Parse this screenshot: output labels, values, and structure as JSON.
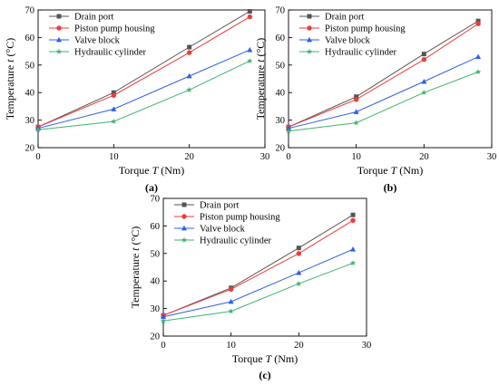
{
  "colors": {
    "Drain port": "#555555",
    "Piston pump housing": "#ee3b3b",
    "Valve block": "#2f5fe6",
    "Hydraulic cylinder": "#3cb371"
  },
  "chart_data": [
    {
      "type": "line",
      "panel_label": "(a)",
      "x": [
        0,
        10,
        20,
        28
      ],
      "xlim": [
        0,
        30
      ],
      "ylim": [
        20,
        70
      ],
      "xticks": [
        0,
        10,
        20,
        30
      ],
      "yticks": [
        20,
        30,
        40,
        50,
        60,
        70
      ],
      "xlabel_pre": "Torque ",
      "xlabel_var": "T",
      "xlabel_post": " (Nm)",
      "ylabel_pre": "Temperature ",
      "ylabel_var": "t",
      "ylabel_post": " (°C)",
      "legend": "top-left",
      "series": [
        {
          "name": "Drain port",
          "marker": "square",
          "values": [
            27.5,
            40,
            56.5,
            69.5
          ]
        },
        {
          "name": "Piston pump housing",
          "marker": "circle",
          "values": [
            27.5,
            39,
            54.5,
            67.5
          ]
        },
        {
          "name": "Valve block",
          "marker": "triangle",
          "values": [
            27,
            34,
            46,
            55.5
          ]
        },
        {
          "name": "Hydraulic cylinder",
          "marker": "star",
          "values": [
            26.5,
            29.5,
            41,
            51.5
          ]
        }
      ]
    },
    {
      "type": "line",
      "panel_label": "(b)",
      "x": [
        0,
        10,
        20,
        28
      ],
      "xlim": [
        0,
        30
      ],
      "ylim": [
        20,
        70
      ],
      "xticks": [
        0,
        10,
        20,
        30
      ],
      "yticks": [
        20,
        30,
        40,
        50,
        60,
        70
      ],
      "xlabel_pre": "Torque ",
      "xlabel_var": "T",
      "xlabel_post": " (Nm)",
      "ylabel_pre": "Temperature ",
      "ylabel_var": "t",
      "ylabel_post": " (°C)",
      "legend": "top-left",
      "series": [
        {
          "name": "Drain port",
          "marker": "square",
          "values": [
            27.5,
            38.5,
            54,
            66
          ]
        },
        {
          "name": "Piston pump housing",
          "marker": "circle",
          "values": [
            27.5,
            37.5,
            52,
            65
          ]
        },
        {
          "name": "Valve block",
          "marker": "triangle",
          "values": [
            27,
            33,
            44,
            53
          ]
        },
        {
          "name": "Hydraulic cylinder",
          "marker": "star",
          "values": [
            26,
            29,
            40,
            47.5
          ]
        }
      ]
    },
    {
      "type": "line",
      "panel_label": "(c)",
      "x": [
        0,
        10,
        20,
        28
      ],
      "xlim": [
        0,
        30
      ],
      "ylim": [
        20,
        70
      ],
      "xticks": [
        0,
        10,
        20,
        30
      ],
      "yticks": [
        20,
        30,
        40,
        50,
        60,
        70
      ],
      "xlabel_pre": "Torque ",
      "xlabel_var": "T",
      "xlabel_post": " (Nm)",
      "ylabel_pre": "Temperature ",
      "ylabel_var": "t",
      "ylabel_post": " (°C)",
      "legend": "top-left",
      "series": [
        {
          "name": "Drain port",
          "marker": "square",
          "values": [
            27.5,
            37.5,
            52,
            64
          ]
        },
        {
          "name": "Piston pump housing",
          "marker": "circle",
          "values": [
            27.5,
            37,
            50,
            62
          ]
        },
        {
          "name": "Valve block",
          "marker": "triangle",
          "values": [
            27,
            32.5,
            43,
            51.5
          ]
        },
        {
          "name": "Hydraulic cylinder",
          "marker": "star",
          "values": [
            25.5,
            29,
            39,
            46.5
          ]
        }
      ]
    }
  ]
}
